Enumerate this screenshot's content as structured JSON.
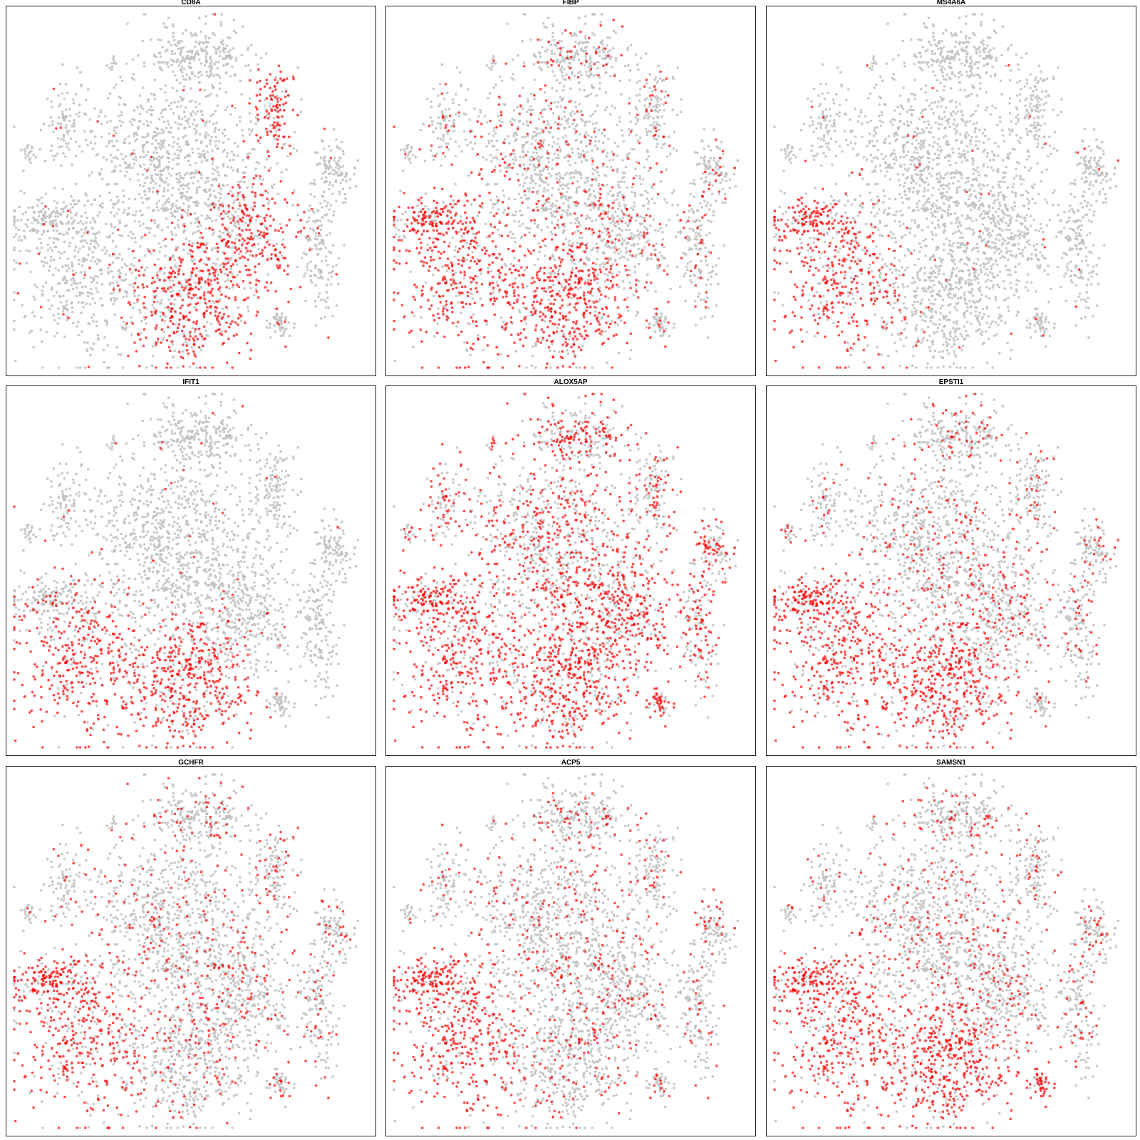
{
  "figure": {
    "point_colors": {
      "background": "#c0c0c0",
      "expressed": "#ff0000"
    }
  },
  "chart_data": [
    {
      "type": "scatter",
      "title": "CD8A",
      "xlabel": "",
      "ylabel": "",
      "grid": false,
      "legend": "none",
      "highlight_regions": [
        "bottom-center",
        "center-right",
        "top-right-small"
      ]
    },
    {
      "type": "scatter",
      "title": "FIBP",
      "xlabel": "",
      "ylabel": "",
      "grid": false,
      "legend": "none",
      "highlight_regions": [
        "scattered",
        "left-lobe",
        "bottom-center"
      ]
    },
    {
      "type": "scatter",
      "title": "MS4A6A",
      "xlabel": "",
      "ylabel": "",
      "grid": false,
      "legend": "none",
      "highlight_regions": [
        "left-lobe"
      ]
    },
    {
      "type": "scatter",
      "title": "IFIT1",
      "xlabel": "",
      "ylabel": "",
      "grid": false,
      "legend": "none",
      "highlight_regions": [
        "bottom-center",
        "left-lobe-right"
      ]
    },
    {
      "type": "scatter",
      "title": "ALOX5AP",
      "xlabel": "",
      "ylabel": "",
      "grid": false,
      "legend": "none",
      "highlight_regions": [
        "broad",
        "left-lobe",
        "bottom-center",
        "center-right",
        "bottom-right-small"
      ]
    },
    {
      "type": "scatter",
      "title": "EPSTI1",
      "xlabel": "",
      "ylabel": "",
      "grid": false,
      "legend": "none",
      "highlight_regions": [
        "left-lobe",
        "bottom-center",
        "scattered"
      ]
    },
    {
      "type": "scatter",
      "title": "GCHFR",
      "xlabel": "",
      "ylabel": "",
      "grid": false,
      "legend": "none",
      "highlight_regions": [
        "left-lobe",
        "scattered"
      ]
    },
    {
      "type": "scatter",
      "title": "ACP5",
      "xlabel": "",
      "ylabel": "",
      "grid": false,
      "legend": "none",
      "highlight_regions": [
        "left-lobe",
        "scattered"
      ]
    },
    {
      "type": "scatter",
      "title": "SAMSN1",
      "xlabel": "",
      "ylabel": "",
      "grid": false,
      "legend": "none",
      "highlight_regions": [
        "bottom-center",
        "left-lobe",
        "bottom-right-small",
        "scattered"
      ]
    }
  ]
}
